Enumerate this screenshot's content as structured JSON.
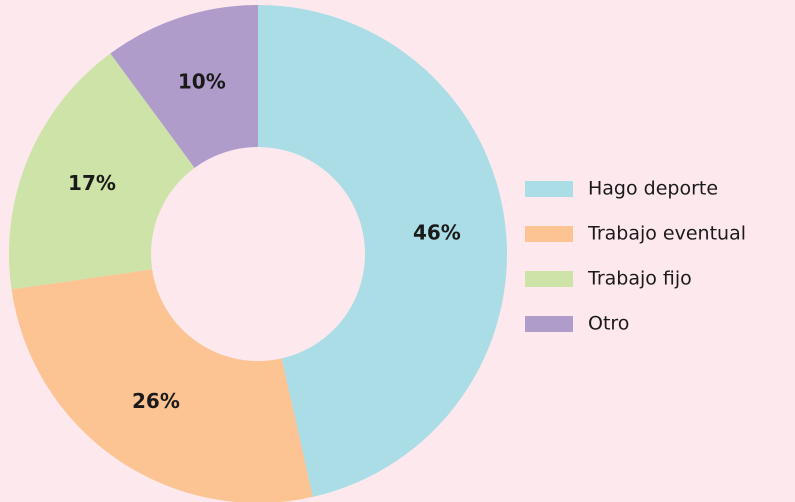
{
  "chart_data": {
    "type": "donut",
    "categories": [
      "Hago deporte",
      "Trabajo eventual",
      "Trabajo fijo",
      "Otro"
    ],
    "values": [
      46,
      26,
      17,
      10
    ],
    "value_labels": [
      "46%",
      "26%",
      "17%",
      "10%"
    ],
    "colors": [
      "#aadde6",
      "#fcc393",
      "#cde3a7",
      "#b09ccb"
    ],
    "legend": "right"
  }
}
